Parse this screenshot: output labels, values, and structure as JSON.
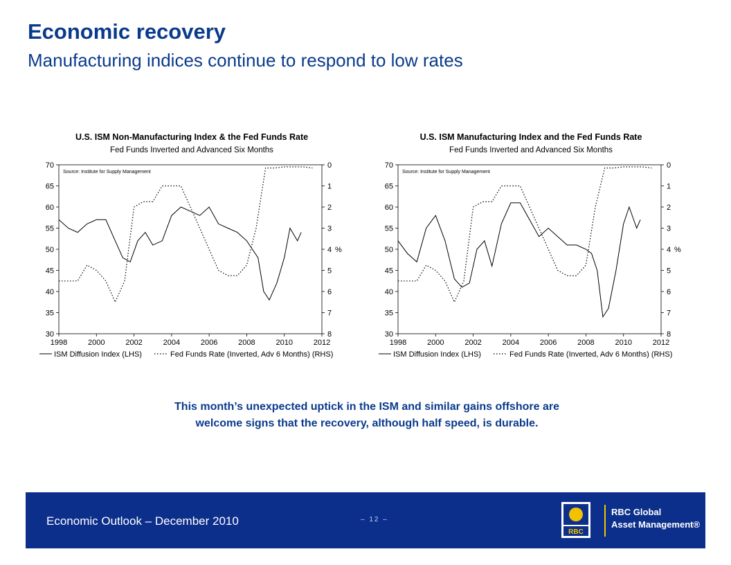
{
  "header": {
    "title": "Economic recovery",
    "subtitle": "Manufacturing indices continue to respond to low rates"
  },
  "caption": "This month’s unexpected uptick in the ISM and similar gains offshore are welcome signs that the recovery, although half speed, is durable.",
  "footer": {
    "text": "Economic Outlook – December 2010",
    "page": "– 12 –",
    "logo_brand": "RBC",
    "logo_line1": "RBC Global",
    "logo_line2": "Asset Management®"
  },
  "colors": {
    "title": "#0a3a8c",
    "footer_bg": "#0c2f8b",
    "accent": "#f2c200"
  },
  "chart_data": [
    {
      "type": "line",
      "title": "U.S. ISM Non-Manufacturing Index & the Fed Funds Rate",
      "subtitle": "Fed Funds Inverted and Advanced Six Months",
      "source": "Source: Institute for Supply Management",
      "x_ticks": [
        "1998",
        "2000",
        "2002",
        "2004",
        "2006",
        "2008",
        "2010",
        "2012"
      ],
      "xlim": [
        1998,
        2012
      ],
      "ylim_left": [
        30,
        70
      ],
      "y_ticks_left": [
        "70",
        "65",
        "60",
        "55",
        "50",
        "45",
        "40",
        "35",
        "30"
      ],
      "ylim_right": [
        0,
        8
      ],
      "y_ticks_right": [
        "0",
        "1",
        "2",
        "3",
        "4",
        "5",
        "6",
        "7",
        "8"
      ],
      "y_right_unit": "%",
      "legend": [
        "ISM Diffusion Index (LHS)",
        "Fed Funds Rate (Inverted, Adv 6 Months) (RHS)"
      ],
      "series": [
        {
          "name": "ISM Diffusion Index (LHS)",
          "axis": "left",
          "style": "solid",
          "x": [
            1998.0,
            1998.5,
            1999.0,
            1999.5,
            2000.0,
            2000.5,
            2001.0,
            2001.4,
            2001.8,
            2002.2,
            2002.6,
            2003.0,
            2003.5,
            2004.0,
            2004.5,
            2005.0,
            2005.5,
            2006.0,
            2006.5,
            2007.0,
            2007.5,
            2008.0,
            2008.3,
            2008.6,
            2008.9,
            2009.2,
            2009.6,
            2010.0,
            2010.3,
            2010.7,
            2010.9
          ],
          "y": [
            57,
            55,
            54,
            56,
            57,
            57,
            52,
            48,
            47,
            52,
            54,
            51,
            52,
            58,
            60,
            59,
            58,
            60,
            56,
            55,
            54,
            52,
            50,
            48,
            40,
            38,
            42,
            48,
            55,
            52,
            54
          ]
        },
        {
          "name": "Fed Funds Rate (Inverted, Adv 6 Months) (RHS)",
          "axis": "right",
          "style": "dotted",
          "x": [
            1998.0,
            1999.0,
            1999.5,
            2000.0,
            2000.5,
            2001.0,
            2001.5,
            2002.0,
            2002.5,
            2003.0,
            2003.5,
            2004.0,
            2004.5,
            2005.0,
            2005.5,
            2006.0,
            2006.5,
            2007.0,
            2007.5,
            2008.0,
            2008.5,
            2009.0,
            2009.5,
            2010.0,
            2010.5,
            2011.0,
            2011.5
          ],
          "y": [
            5.5,
            5.5,
            4.75,
            5.0,
            5.5,
            6.5,
            5.5,
            2.0,
            1.75,
            1.75,
            1.0,
            1.0,
            1.0,
            2.0,
            3.0,
            4.0,
            5.0,
            5.25,
            5.25,
            4.75,
            3.0,
            0.15,
            0.15,
            0.1,
            0.1,
            0.1,
            0.15
          ]
        }
      ]
    },
    {
      "type": "line",
      "title": "U.S. ISM Manufacturing Index and the Fed Funds Rate",
      "subtitle": "Fed Funds Inverted and Advanced Six Months",
      "source": "Source: Institute for Supply Management",
      "x_ticks": [
        "1998",
        "2000",
        "2002",
        "2004",
        "2006",
        "2008",
        "2010",
        "2012"
      ],
      "xlim": [
        1998,
        2012
      ],
      "ylim_left": [
        30,
        70
      ],
      "y_ticks_left": [
        "70",
        "65",
        "60",
        "55",
        "50",
        "45",
        "40",
        "35",
        "30"
      ],
      "ylim_right": [
        0,
        8
      ],
      "y_ticks_right": [
        "0",
        "1",
        "2",
        "3",
        "4",
        "5",
        "6",
        "7",
        "8"
      ],
      "y_right_unit": "%",
      "legend": [
        "ISM Diffusion Index (LHS)",
        "Fed Funds Rate (Inverted, Adv 6 Months) (RHS)"
      ],
      "series": [
        {
          "name": "ISM Diffusion Index (LHS)",
          "axis": "left",
          "style": "solid",
          "x": [
            1998.0,
            1998.5,
            1999.0,
            1999.5,
            2000.0,
            2000.5,
            2001.0,
            2001.4,
            2001.8,
            2002.2,
            2002.6,
            2003.0,
            2003.5,
            2004.0,
            2004.5,
            2005.0,
            2005.5,
            2006.0,
            2006.5,
            2007.0,
            2007.5,
            2008.0,
            2008.3,
            2008.6,
            2008.9,
            2009.2,
            2009.6,
            2010.0,
            2010.3,
            2010.7,
            2010.9
          ],
          "y": [
            52,
            49,
            47,
            55,
            58,
            52,
            43,
            41,
            42,
            50,
            52,
            46,
            56,
            61,
            61,
            57,
            53,
            55,
            53,
            51,
            51,
            50,
            49,
            45,
            34,
            36,
            45,
            56,
            60,
            55,
            57
          ]
        },
        {
          "name": "Fed Funds Rate (Inverted, Adv 6 Months) (RHS)",
          "axis": "right",
          "style": "dotted",
          "x": [
            1998.0,
            1999.0,
            1999.5,
            2000.0,
            2000.5,
            2001.0,
            2001.5,
            2002.0,
            2002.5,
            2003.0,
            2003.5,
            2004.0,
            2004.5,
            2005.0,
            2005.5,
            2006.0,
            2006.5,
            2007.0,
            2007.5,
            2008.0,
            2008.5,
            2009.0,
            2009.5,
            2010.0,
            2010.5,
            2011.0,
            2011.5
          ],
          "y": [
            5.5,
            5.5,
            4.75,
            5.0,
            5.5,
            6.5,
            5.5,
            2.0,
            1.75,
            1.75,
            1.0,
            1.0,
            1.0,
            2.0,
            3.0,
            4.0,
            5.0,
            5.25,
            5.25,
            4.75,
            2.0,
            0.15,
            0.15,
            0.1,
            0.1,
            0.1,
            0.15
          ]
        }
      ]
    }
  ]
}
